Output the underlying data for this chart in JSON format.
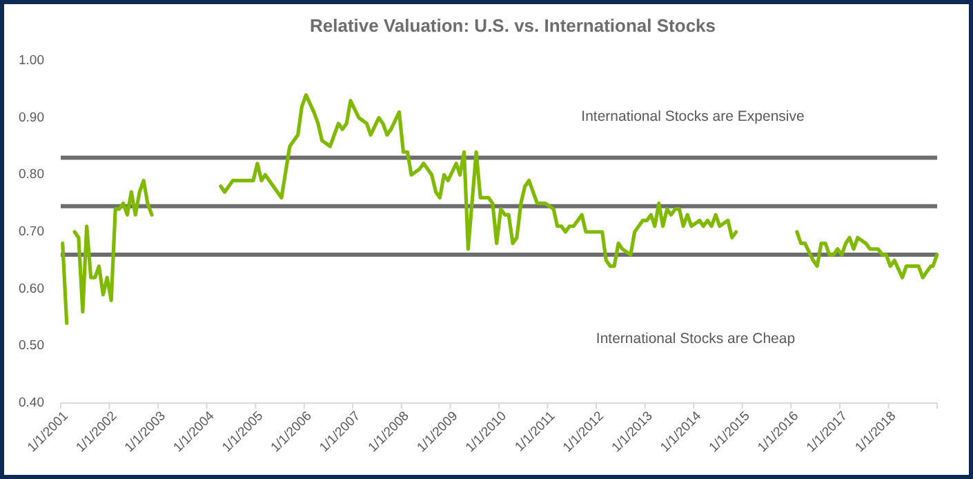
{
  "chart_data": {
    "type": "line",
    "title": "Relative Valuation: U.S. vs. International Stocks",
    "annotations": [
      "International Stocks are Expensive",
      "International Stocks are Cheap"
    ],
    "xlim": [
      "2001-01-01",
      "2019-01-01"
    ],
    "xticks": [
      {
        "value": "2001-01-01",
        "label": "1/1/2001"
      },
      {
        "value": "2002-01-01",
        "label": "1/1/2002"
      },
      {
        "value": "2003-01-01",
        "label": "1/1/2003"
      },
      {
        "value": "2004-01-01",
        "label": "1/1/2004"
      },
      {
        "value": "2005-01-01",
        "label": "1/1/2005"
      },
      {
        "value": "2006-01-01",
        "label": "1/1/2006"
      },
      {
        "value": "2007-01-01",
        "label": "1/1/2007"
      },
      {
        "value": "2008-01-01",
        "label": "1/1/2008"
      },
      {
        "value": "2009-01-01",
        "label": "1/1/2009"
      },
      {
        "value": "2010-01-01",
        "label": "1/1/2010"
      },
      {
        "value": "2011-01-01",
        "label": "1/1/2011"
      },
      {
        "value": "2012-01-01",
        "label": "1/1/2012"
      },
      {
        "value": "2013-01-01",
        "label": "1/1/2013"
      },
      {
        "value": "2014-01-01",
        "label": "1/1/2014"
      },
      {
        "value": "2015-01-01",
        "label": "1/1/2015"
      },
      {
        "value": "2016-01-01",
        "label": "1/1/2016"
      },
      {
        "value": "2017-01-01",
        "label": "1/1/2017"
      },
      {
        "value": "2018-01-01",
        "label": "1/1/2018"
      },
      {
        "value": "2019-01-01",
        "label": null
      }
    ],
    "ylim": [
      0.4,
      1.0
    ],
    "yticks": [
      {
        "value": 0.4,
        "label": "0.40"
      },
      {
        "value": 0.5,
        "label": "0.50"
      },
      {
        "value": 0.6,
        "label": "0.60"
      },
      {
        "value": 0.7,
        "label": "0.70"
      },
      {
        "value": 0.8,
        "label": "0.80"
      },
      {
        "value": 0.9,
        "label": "0.90"
      },
      {
        "value": 1.0,
        "label": "1.00"
      }
    ],
    "ref_lines": [
      {
        "axis": "y",
        "value": 0.83,
        "color": "#6d6d6d"
      },
      {
        "axis": "y",
        "value": 0.745,
        "color": "#6d6d6d"
      },
      {
        "axis": "y",
        "value": 0.66,
        "color": "#6d6d6d"
      }
    ],
    "series": [
      {
        "color": "#7fba00",
        "x": [
          "2001-01-15",
          "2001-02-15",
          "2001-03-15",
          "2001-04-15",
          "2001-05-15",
          "2001-06-15",
          "2001-07-15",
          "2001-08-15",
          "2001-09-15",
          "2001-10-15",
          "2001-11-15",
          "2001-12-15",
          "2002-01-15",
          "2002-02-15",
          "2002-03-15",
          "2002-04-15",
          "2002-05-15",
          "2002-06-15",
          "2002-07-15",
          "2002-08-15",
          "2002-09-15",
          "2002-10-15",
          "2002-11-15",
          "2003-07-15",
          "2004-04-15",
          "2004-05-15",
          "2004-07-15",
          "2004-08-15",
          "2004-09-15",
          "2004-11-15",
          "2004-12-15",
          "2005-01-15",
          "2005-02-15",
          "2005-03-15",
          "2005-05-15",
          "2005-07-15",
          "2005-09-15",
          "2005-10-15",
          "2005-11-15",
          "2005-12-15",
          "2006-01-15",
          "2006-03-15",
          "2006-04-15",
          "2006-05-15",
          "2006-07-15",
          "2006-08-15",
          "2006-09-15",
          "2006-10-15",
          "2006-11-15",
          "2006-12-15",
          "2007-02-15",
          "2007-04-15",
          "2007-05-15",
          "2007-07-15",
          "2007-08-15",
          "2007-09-15",
          "2007-10-15",
          "2007-12-15",
          "2008-01-15",
          "2008-02-15",
          "2008-03-15",
          "2008-05-15",
          "2008-06-15",
          "2008-08-15",
          "2008-09-15",
          "2008-10-15",
          "2008-11-15",
          "2008-12-15",
          "2009-02-15",
          "2009-03-15",
          "2009-04-15",
          "2009-05-15",
          "2009-07-15",
          "2009-08-15",
          "2009-10-15",
          "2009-11-15",
          "2009-12-15",
          "2010-01-15",
          "2010-02-15",
          "2010-03-15",
          "2010-04-15",
          "2010-05-15",
          "2010-06-15",
          "2010-07-15",
          "2010-08-15",
          "2010-10-15",
          "2010-11-15",
          "2010-12-15",
          "2011-02-15",
          "2011-03-15",
          "2011-04-15",
          "2011-05-15",
          "2011-06-15",
          "2011-07-15",
          "2011-09-15",
          "2011-10-15",
          "2011-11-15",
          "2012-02-15",
          "2012-03-15",
          "2012-04-15",
          "2012-05-15",
          "2012-06-15",
          "2012-07-15",
          "2012-09-15",
          "2012-10-15",
          "2012-12-15",
          "2013-01-15",
          "2013-02-15",
          "2013-03-15",
          "2013-04-15",
          "2013-05-15",
          "2013-06-15",
          "2013-07-15",
          "2013-08-15",
          "2013-09-15",
          "2013-10-15",
          "2013-11-15",
          "2013-12-15",
          "2014-02-15",
          "2014-03-15",
          "2014-04-15",
          "2014-05-15",
          "2014-06-15",
          "2014-07-15",
          "2014-09-15",
          "2014-10-15",
          "2014-11-15",
          "2015-07-15",
          "2016-02-15",
          "2016-03-15",
          "2016-04-15",
          "2016-06-15",
          "2016-07-15",
          "2016-08-15",
          "2016-09-15",
          "2016-10-15",
          "2016-11-15",
          "2016-12-15",
          "2017-01-15",
          "2017-02-15",
          "2017-03-15",
          "2017-04-15",
          "2017-05-15",
          "2017-07-15",
          "2017-08-15",
          "2017-10-15",
          "2017-11-15",
          "2017-12-15",
          "2018-01-15",
          "2018-02-15",
          "2018-04-15",
          "2018-05-15",
          "2018-07-15",
          "2018-08-15",
          "2018-09-15",
          "2018-10-15",
          "2018-11-15",
          "2018-12-01",
          "2018-12-31"
        ],
        "values": [
          0.68,
          0.54,
          null,
          0.7,
          0.69,
          0.56,
          0.71,
          0.62,
          0.62,
          0.64,
          0.59,
          0.62,
          0.58,
          0.74,
          0.74,
          0.75,
          0.73,
          0.77,
          0.73,
          0.77,
          0.79,
          0.75,
          0.73,
          null,
          0.78,
          0.77,
          0.79,
          0.79,
          0.79,
          0.79,
          0.79,
          0.82,
          0.79,
          0.8,
          0.78,
          0.76,
          0.85,
          0.86,
          0.87,
          0.92,
          0.94,
          0.91,
          0.89,
          0.86,
          0.85,
          0.87,
          0.89,
          0.88,
          0.89,
          0.93,
          0.9,
          0.89,
          0.87,
          0.9,
          0.89,
          0.87,
          0.88,
          0.91,
          0.84,
          0.84,
          0.8,
          0.81,
          0.82,
          0.8,
          0.77,
          0.76,
          0.8,
          0.79,
          0.82,
          0.8,
          0.84,
          0.67,
          0.84,
          0.76,
          0.76,
          0.75,
          0.68,
          0.74,
          0.73,
          0.73,
          0.68,
          0.69,
          0.75,
          0.78,
          0.79,
          0.75,
          0.75,
          0.75,
          0.74,
          0.71,
          0.71,
          0.7,
          0.71,
          0.71,
          0.73,
          0.7,
          0.7,
          0.7,
          0.65,
          0.64,
          0.64,
          0.68,
          0.67,
          0.66,
          0.7,
          0.72,
          0.72,
          0.73,
          0.71,
          0.75,
          0.71,
          0.74,
          0.73,
          0.74,
          0.74,
          0.71,
          0.73,
          0.71,
          0.72,
          0.71,
          0.72,
          0.71,
          0.73,
          0.71,
          0.72,
          0.69,
          0.7,
          null,
          0.7,
          0.68,
          0.68,
          0.65,
          0.64,
          0.68,
          0.68,
          0.66,
          0.66,
          0.67,
          0.66,
          0.68,
          0.69,
          0.67,
          0.69,
          0.68,
          0.67,
          0.67,
          0.66,
          0.66,
          0.64,
          0.65,
          0.62,
          0.64,
          0.64,
          0.64,
          0.62,
          0.63,
          0.64,
          0.64,
          0.66
        ]
      }
    ],
    "grid": false
  }
}
